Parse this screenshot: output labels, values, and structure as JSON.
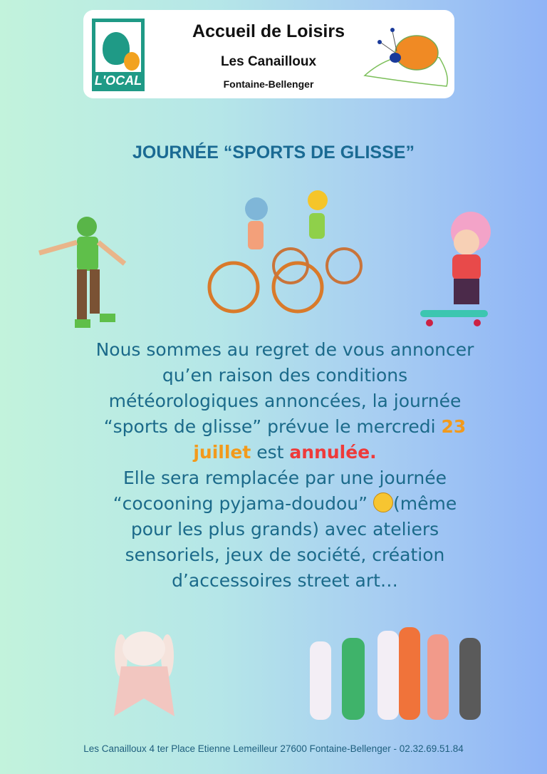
{
  "header": {
    "logo_text": "L'OCAL",
    "title": "Accueil de Loisirs",
    "subtitle": "Les Canailloux",
    "location": "Fontaine-Bellenger"
  },
  "event_title": "JOURNÉE  “SPORTS DE GLISSE”",
  "message": {
    "line1": "Nous sommes au regret de vous annoncer",
    "line2": "qu’en raison des conditions",
    "line3": "météorologiques annoncées, la journée",
    "line4_a": "“sports de glisse” prévue le mercredi ",
    "line4_date": "23",
    "line5_date": "juillet",
    "line5_b": " est ",
    "line5_status": "annulée.",
    "line6": "Elle sera remplacée par une journée",
    "line7_a": "“cocooning pyjama-doudou” ",
    "line7_b": "(même",
    "line8": "pour les plus grands) avec ateliers",
    "line9": "sensoriels, jeux de société, création",
    "line10": "d’accessoires street art…"
  },
  "footer": "Les Canailloux 4 ter Place Etienne Lemeilleur 27600 Fontaine-Bellenger - 02.32.69.51.84",
  "colors": {
    "title": "#1a6a93",
    "body": "#1b6a8a",
    "date": "#f29a1c",
    "cancelled": "#ee3a3a"
  },
  "icons": [
    "ocal-logo",
    "snail-logo",
    "rollerskater-illustration",
    "cyclists-illustration",
    "skateboarder-illustration",
    "wink-emoji",
    "bunny-plush-illustration",
    "pajama-kids-illustration"
  ]
}
